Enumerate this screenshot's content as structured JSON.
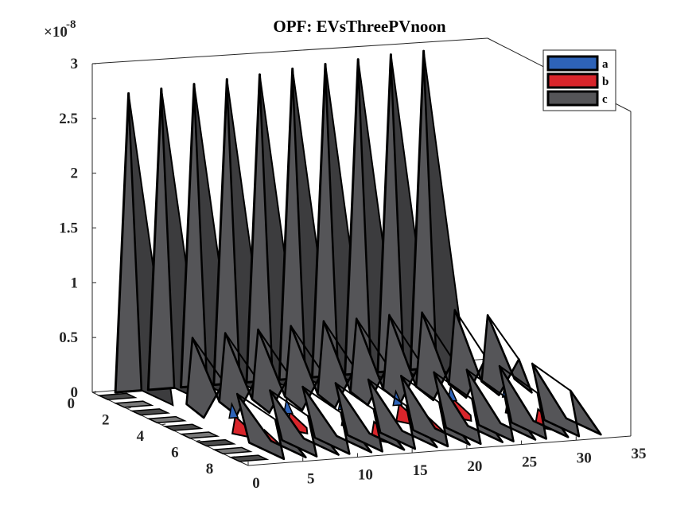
{
  "chart_data": {
    "type": "area",
    "title": "OPF: EVsThreePVnoon",
    "xlabel": "",
    "ylabel": "",
    "zlabel": "",
    "multiplier_label": "×10",
    "multiplier_exponent": "-8",
    "x_ticks": [
      "0",
      "5",
      "10",
      "15",
      "20",
      "25",
      "30",
      "35"
    ],
    "y_ticks": [
      "0",
      "2",
      "4",
      "6",
      "8"
    ],
    "z_ticks": [
      "0",
      "0.5",
      "1",
      "1.5",
      "2",
      "2.5",
      "3"
    ],
    "xlim": [
      0,
      35
    ],
    "ylim": [
      0,
      9
    ],
    "zlim": [
      0,
      3
    ],
    "grid": false,
    "legend_position": "top-right",
    "series": [
      {
        "name": "a",
        "color": "#2E63B8",
        "row_peaks": [
          1,
          4,
          7
        ],
        "spike_x": [
          5,
          10,
          15,
          20,
          25,
          30
        ],
        "row_values": [
          0.02,
          0.03,
          0.03
        ]
      },
      {
        "name": "b",
        "color": "#D9252B",
        "row_peaks": [
          1,
          4,
          7
        ],
        "spike_x": [
          5,
          10,
          15,
          20,
          25,
          30
        ],
        "row_values": [
          0.06,
          0.05,
          0.08
        ]
      },
      {
        "name": "c",
        "color": "#555558",
        "back_spike_x": [
          3,
          6,
          9,
          12,
          15,
          18,
          21,
          24,
          27,
          30
        ],
        "back_spike_values": [
          2.72,
          2.74,
          2.76,
          2.78,
          2.8,
          2.83,
          2.85,
          2.87,
          2.89,
          2.9
        ],
        "mid_ridge_x": [
          6,
          9,
          12,
          15,
          18,
          21,
          24,
          27,
          30,
          33
        ],
        "mid_ridge_values": [
          0.6,
          0.62,
          0.63,
          0.64,
          0.66,
          0.66,
          0.67,
          0.67,
          0.67,
          0.6
        ],
        "front_spike_x": [
          5,
          8,
          11,
          14,
          17,
          20,
          23,
          26,
          29,
          32
        ],
        "front_spike_values": [
          0.35,
          0.36,
          0.37,
          0.38,
          0.39,
          0.4,
          0.41,
          0.41,
          0.42,
          0.42
        ]
      }
    ]
  }
}
